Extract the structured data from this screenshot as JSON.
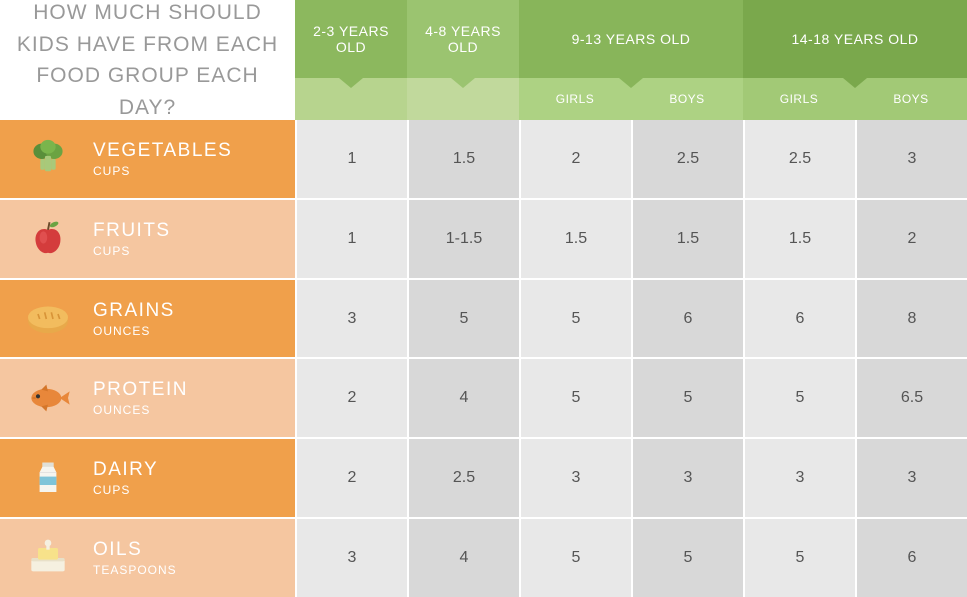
{
  "title": "HOW MUCH SHOULD KIDS HAVE FROM EACH FOOD GROUP EACH DAY?",
  "age_groups": [
    {
      "label": "2-3 YEARS OLD",
      "span": 1,
      "bg_top": "#8cb85e",
      "bg_sub": "#b7d48e",
      "sublabels": [
        ""
      ]
    },
    {
      "label": "4-8 YEARS OLD",
      "span": 1,
      "bg_top": "#9bc470",
      "bg_sub": "#c1d99c",
      "sublabels": [
        ""
      ]
    },
    {
      "label": "9-13 YEARS OLD",
      "span": 2,
      "bg_top": "#88b55a",
      "bg_sub": "#add283",
      "sublabels": [
        "GIRLS",
        "BOYS"
      ]
    },
    {
      "label": "14-18 YEARS OLD",
      "span": 2,
      "bg_top": "#7aa84c",
      "bg_sub": "#a2c976",
      "sublabels": [
        "GIRLS",
        "BOYS"
      ]
    }
  ],
  "food_groups": [
    {
      "name": "VEGETABLES",
      "unit": "CUPS",
      "icon": "broccoli",
      "row_bg": "#f0a04b"
    },
    {
      "name": "FRUITS",
      "unit": "CUPS",
      "icon": "apple",
      "row_bg": "#f5c6a0"
    },
    {
      "name": "GRAINS",
      "unit": "OUNCES",
      "icon": "bread",
      "row_bg": "#f0a04b"
    },
    {
      "name": "PROTEIN",
      "unit": "OUNCES",
      "icon": "fish",
      "row_bg": "#f5c6a0"
    },
    {
      "name": "DAIRY",
      "unit": "CUPS",
      "icon": "milk",
      "row_bg": "#f0a04b"
    },
    {
      "name": "OILS",
      "unit": "TEASPOONS",
      "icon": "butter",
      "row_bg": "#f5c6a0"
    }
  ],
  "values": [
    [
      "1",
      "1.5",
      "2",
      "2.5",
      "2.5",
      "3"
    ],
    [
      "1",
      "1-1.5",
      "1.5",
      "1.5",
      "1.5",
      "2"
    ],
    [
      "3",
      "5",
      "5",
      "6",
      "6",
      "8"
    ],
    [
      "2",
      "4",
      "5",
      "5",
      "5",
      "6.5"
    ],
    [
      "2",
      "2.5",
      "3",
      "3",
      "3",
      "3"
    ],
    [
      "3",
      "4",
      "5",
      "5",
      "5",
      "6"
    ]
  ],
  "cell_colors": {
    "light": "#e8e8e8",
    "dark": "#d8d8d8"
  },
  "text_colors": {
    "title": "#999999",
    "cell": "#555555",
    "white": "#ffffff"
  }
}
